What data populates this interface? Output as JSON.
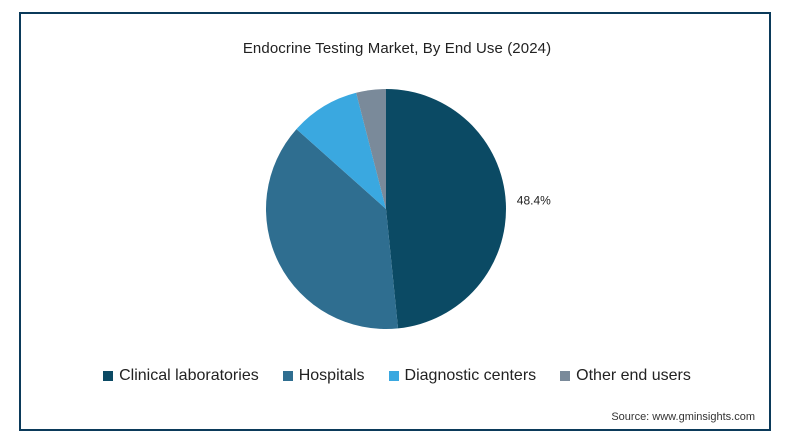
{
  "chart_data": {
    "type": "pie",
    "title": "Endocrine Testing Market, By End Use (2024)",
    "slices": [
      {
        "label": "Clinical laboratories",
        "value": 48.4,
        "color": "#0b4a64",
        "data_label": "48.4%"
      },
      {
        "label": "Hospitals",
        "value": 38.2,
        "color": "#2f6e90",
        "data_label": ""
      },
      {
        "label": "Diagnostic centers",
        "value": 9.4,
        "color": "#3aa8e0",
        "data_label": ""
      },
      {
        "label": "Other end users",
        "value": 4.0,
        "color": "#7a8a9a",
        "data_label": ""
      }
    ],
    "start_angle_deg": 0,
    "direction": "clockwise",
    "legend_position": "bottom"
  },
  "source": "Source: www.gminsights.com",
  "colors": {
    "border": "#0b3a5a"
  }
}
